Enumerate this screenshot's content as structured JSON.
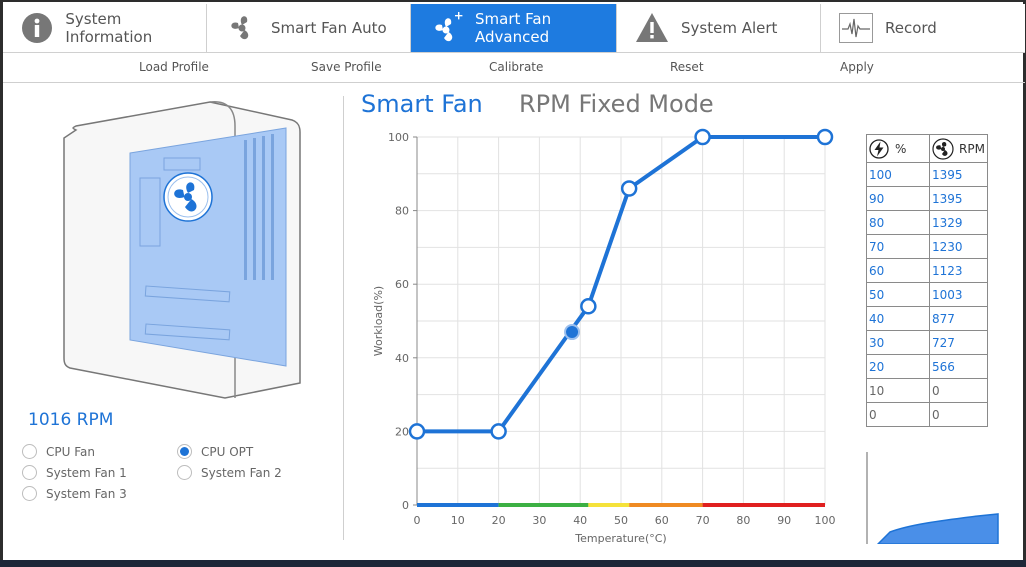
{
  "tabs": [
    {
      "label": "System Information",
      "icon": "info-icon",
      "active": false
    },
    {
      "label": "Smart Fan Auto",
      "icon": "fan-icon",
      "active": false
    },
    {
      "label": "Smart Fan Advanced",
      "icon": "fan-plus-icon",
      "active": true
    },
    {
      "label": "System Alert",
      "icon": "warning-icon",
      "active": false
    },
    {
      "label": "Record",
      "icon": "waveform-icon",
      "active": false
    }
  ],
  "toolbar": {
    "load": "Load Profile",
    "save": "Save Profile",
    "calibrate": "Calibrate",
    "reset": "Reset",
    "apply": "Apply"
  },
  "current_rpm": "1016 RPM",
  "fans": [
    {
      "label": "CPU Fan",
      "selected": false
    },
    {
      "label": "CPU OPT",
      "selected": true
    },
    {
      "label": "System Fan 1",
      "selected": false
    },
    {
      "label": "System Fan 2",
      "selected": false
    },
    {
      "label": "System Fan 3",
      "selected": false
    }
  ],
  "modes": {
    "smart": "Smart Fan",
    "rpm": "RPM Fixed Mode"
  },
  "rpm_table": {
    "header_percent": "%",
    "header_rpm": "RPM",
    "rows": [
      {
        "pct": "100",
        "rpm": "1395"
      },
      {
        "pct": "90",
        "rpm": "1395"
      },
      {
        "pct": "80",
        "rpm": "1329"
      },
      {
        "pct": "70",
        "rpm": "1230"
      },
      {
        "pct": "60",
        "rpm": "1123"
      },
      {
        "pct": "50",
        "rpm": "1003"
      },
      {
        "pct": "40",
        "rpm": "877"
      },
      {
        "pct": "30",
        "rpm": "727"
      },
      {
        "pct": "20",
        "rpm": "566"
      },
      {
        "pct": "10",
        "rpm": "0"
      },
      {
        "pct": "0",
        "rpm": "0"
      }
    ]
  },
  "colors": {
    "accent": "#1e7be0",
    "curve": "#1e73d6"
  },
  "chart_data": {
    "type": "line",
    "xlabel": "Temperature(°C)",
    "ylabel": "Workload(%)",
    "xlim": [
      0,
      100
    ],
    "ylim": [
      0,
      100
    ],
    "x_ticks": [
      0,
      10,
      20,
      30,
      40,
      50,
      60,
      70,
      80,
      90,
      100
    ],
    "y_ticks": [
      0,
      20,
      40,
      60,
      80,
      100
    ],
    "grid": true,
    "series": [
      {
        "points": [
          [
            0,
            20
          ],
          [
            20,
            20
          ],
          [
            42,
            54
          ],
          [
            52,
            86
          ],
          [
            70,
            100
          ],
          [
            100,
            100
          ]
        ]
      }
    ],
    "current_point": [
      38,
      47
    ],
    "temperature_bands": [
      {
        "from": 0,
        "to": 20,
        "color": "#1e73d6"
      },
      {
        "from": 20,
        "to": 42,
        "color": "#3cb043"
      },
      {
        "from": 42,
        "to": 52,
        "color": "#f5e23a"
      },
      {
        "from": 52,
        "to": 70,
        "color": "#ef8a22"
      },
      {
        "from": 70,
        "to": 100,
        "color": "#e02020"
      }
    ]
  }
}
